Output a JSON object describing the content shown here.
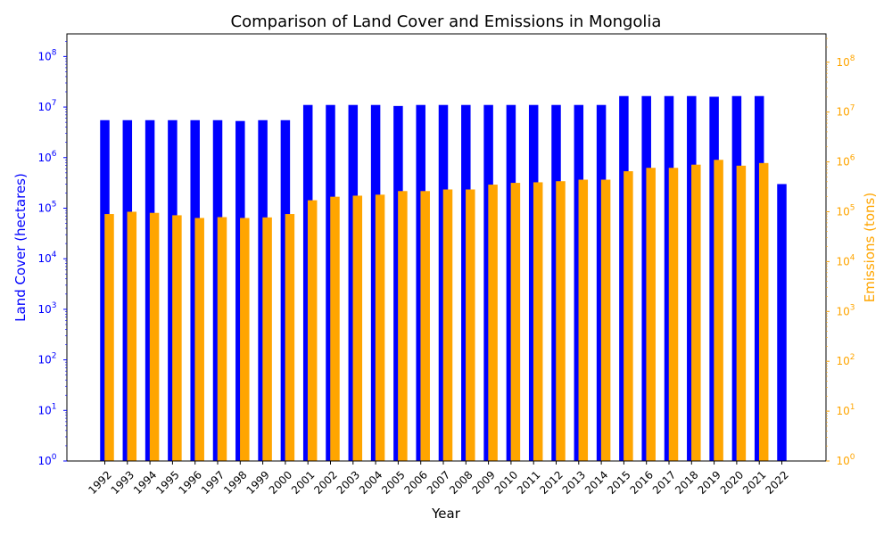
{
  "chart_data": {
    "type": "bar",
    "title": "Comparison of Land Cover and Emissions in Mongolia",
    "xlabel": "Year",
    "ylabel_left": "Land Cover (hectares)",
    "ylabel_right": "Emissions (tons)",
    "left_scale": "log",
    "right_scale": "log",
    "ylim_left": [
      1,
      280000000
    ],
    "ylim_right": [
      1,
      370000000
    ],
    "grid": false,
    "colors": {
      "land": "#0000ff",
      "emissions": "#ffa500",
      "left_axis": "#0000ff",
      "right_axis": "#ffa500"
    },
    "yticks_left": [
      {
        "base": "10",
        "exp": "0",
        "value": 1
      },
      {
        "base": "10",
        "exp": "1",
        "value": 10
      },
      {
        "base": "10",
        "exp": "2",
        "value": 100
      },
      {
        "base": "10",
        "exp": "3",
        "value": 1000
      },
      {
        "base": "10",
        "exp": "4",
        "value": 10000
      },
      {
        "base": "10",
        "exp": "5",
        "value": 100000
      },
      {
        "base": "10",
        "exp": "6",
        "value": 1000000
      },
      {
        "base": "10",
        "exp": "7",
        "value": 10000000
      },
      {
        "base": "10",
        "exp": "8",
        "value": 100000000
      }
    ],
    "yticks_right": [
      {
        "base": "10",
        "exp": "0",
        "value": 1
      },
      {
        "base": "10",
        "exp": "1",
        "value": 10
      },
      {
        "base": "10",
        "exp": "2",
        "value": 100
      },
      {
        "base": "10",
        "exp": "3",
        "value": 1000
      },
      {
        "base": "10",
        "exp": "4",
        "value": 10000
      },
      {
        "base": "10",
        "exp": "5",
        "value": 100000
      },
      {
        "base": "10",
        "exp": "6",
        "value": 1000000
      },
      {
        "base": "10",
        "exp": "7",
        "value": 10000000
      },
      {
        "base": "10",
        "exp": "8",
        "value": 100000000
      }
    ],
    "categories": [
      "1992",
      "1993",
      "1994",
      "1995",
      "1996",
      "1997",
      "1998",
      "1999",
      "2000",
      "2001",
      "2002",
      "2003",
      "2004",
      "2005",
      "2006",
      "2007",
      "2008",
      "2009",
      "2010",
      "2011",
      "2012",
      "2013",
      "2014",
      "2015",
      "2016",
      "2017",
      "2018",
      "2019",
      "2020",
      "2021",
      "2022"
    ],
    "series": [
      {
        "key": "land",
        "axis": "left",
        "values": [
          5500000,
          5500000,
          5500000,
          5500000,
          5500000,
          5500000,
          5300000,
          5500000,
          5500000,
          11000000,
          11000000,
          11000000,
          11000000,
          10500000,
          11000000,
          11000000,
          11000000,
          11000000,
          11000000,
          11000000,
          11000000,
          11000000,
          11000000,
          16500000,
          16500000,
          16500000,
          16500000,
          16000000,
          16500000,
          16500000,
          300000
        ]
      },
      {
        "key": "emissions",
        "axis": "right",
        "values": [
          90000,
          100000,
          95000,
          85000,
          75000,
          78000,
          75000,
          77000,
          90000,
          170000,
          200000,
          210000,
          220000,
          260000,
          260000,
          280000,
          280000,
          350000,
          380000,
          390000,
          410000,
          440000,
          440000,
          650000,
          760000,
          760000,
          880000,
          1100000,
          840000,
          950000,
          null
        ]
      }
    ]
  }
}
